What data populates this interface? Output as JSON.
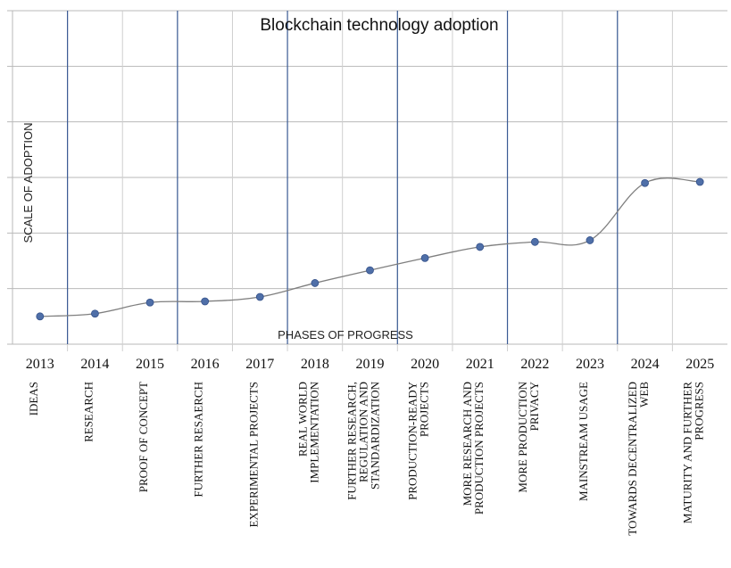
{
  "chart_data": {
    "type": "line",
    "title": "Blockchain technology adoption",
    "xlabel": "PHASES OF PROGRESS",
    "ylabel": "SCALE OF ADOPTION",
    "categories": [
      "2013",
      "2014",
      "2015",
      "2016",
      "2017",
      "2018",
      "2019",
      "2020",
      "2021",
      "2022",
      "2023",
      "2024",
      "2025"
    ],
    "phases": [
      "IDEAS",
      "RESEARCH",
      "PROOF OF CONCEPT",
      "FURTHER RESAERCH",
      "EXPERIMENTAL PROJECTS",
      "REAL WORLD\nIMPLEMENTATION",
      "FURTHER RESEARCH,\nREGULATION AND\nSTANDARDIZATION",
      "PRODUCTION-READY\nPROJECTS",
      "MORE RESEARCH AND\nPRODUCTION PROJECTS",
      "MORE PRODUCTION\nPRIVACY",
      "MAINSTREAM USAGE",
      "TOWARDS DECENTRALIZED\nWEB",
      "MATURITY AND FURTHER\nPROGRESS"
    ],
    "values": [
      0.5,
      0.55,
      0.75,
      0.77,
      0.85,
      1.1,
      1.33,
      1.55,
      1.75,
      1.84,
      1.87,
      2.9,
      2.92
    ],
    "ylim": [
      0,
      6
    ],
    "grid": true,
    "smooth": true,
    "marker": "circle",
    "colors": {
      "line": "#7f7f7f",
      "marker": "#4f6fa8",
      "phase_divider": "#3b5b95",
      "grid": "#b9b9b9"
    }
  }
}
